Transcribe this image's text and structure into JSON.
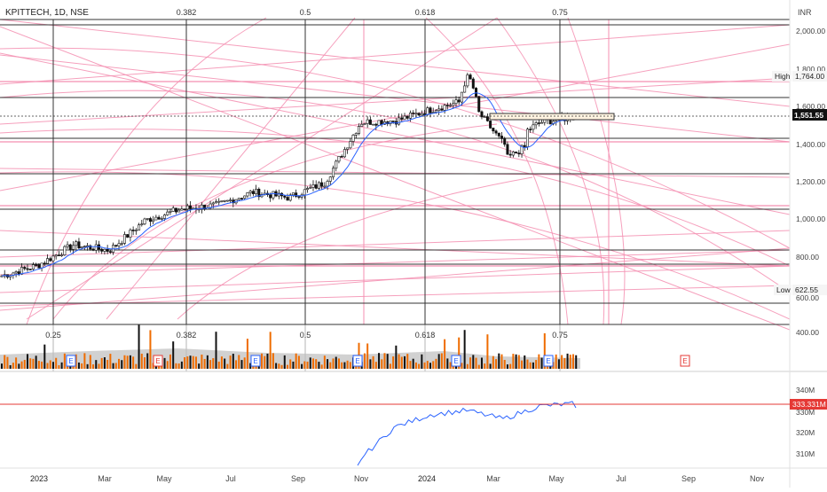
{
  "chart_title": "KPITTECH, 1D, NSE",
  "currency": "INR",
  "fib_top": [
    "0.382",
    "0.5",
    "0.618",
    "0.75"
  ],
  "fib_vol": [
    "0.25",
    "0.382",
    "0.5",
    "0.618",
    "0.75"
  ],
  "price_axis": [
    "2,000.00",
    "1,800.00",
    "1,600.00",
    "1,400.00",
    "1,200.00",
    "1,000.00",
    "800.00",
    "600.00",
    "400.00"
  ],
  "high": {
    "label": "High",
    "value": "1,764.00"
  },
  "low": {
    "label": "Low",
    "value": "622.55"
  },
  "last_price": "1,551.55",
  "ind_axis": [
    "340M",
    "330M",
    "320M",
    "310M"
  ],
  "ind_value": "333.331M",
  "time_axis": [
    "2023",
    "Mar",
    "May",
    "Jul",
    "Sep",
    "Nov",
    "2024",
    "Mar",
    "May",
    "Jul",
    "Sep",
    "Nov"
  ],
  "earnings_marker": "E",
  "colors": {
    "fib_pink": "#f48fb1",
    "grid_dark": "#333333",
    "candle_up": "#ffffff",
    "candle_down": "#111111",
    "ma_blue": "#2962ff",
    "volume_up": "#ef6c00",
    "volume_down": "#111111",
    "volume_area": "#bdbdbd",
    "indicator_line": "#2962ff",
    "indicator_level": "#e53935",
    "last_price_box": "#111111"
  },
  "chart_data": {
    "type": "candlestick",
    "title": "KPITTECH, 1D, NSE",
    "y_unit": "INR",
    "x": [
      "2023-01",
      "2023-02",
      "2023-03",
      "2023-04",
      "2023-05",
      "2023-06",
      "2023-07",
      "2023-08",
      "2023-09",
      "2023-10",
      "2023-11",
      "2023-12",
      "2024-01",
      "2024-02",
      "2024-03",
      "2024-04",
      "2024-05"
    ],
    "close": [
      705,
      760,
      870,
      840,
      1000,
      1060,
      1080,
      1150,
      1120,
      1200,
      1520,
      1530,
      1590,
      1640,
      1400,
      1520,
      1551.55
    ],
    "high": 1764.0,
    "low": 622.55,
    "last": 1551.55,
    "ylim": [
      400,
      2050
    ],
    "indicator": {
      "x": [
        "2023-11",
        "2023-12",
        "2024-01",
        "2024-02",
        "2024-03",
        "2024-04",
        "2024-05"
      ],
      "values": [
        306,
        322,
        328,
        330,
        326,
        332,
        333.331
      ],
      "level": 333.331,
      "ylim": [
        306,
        342
      ],
      "unit": "M"
    }
  }
}
